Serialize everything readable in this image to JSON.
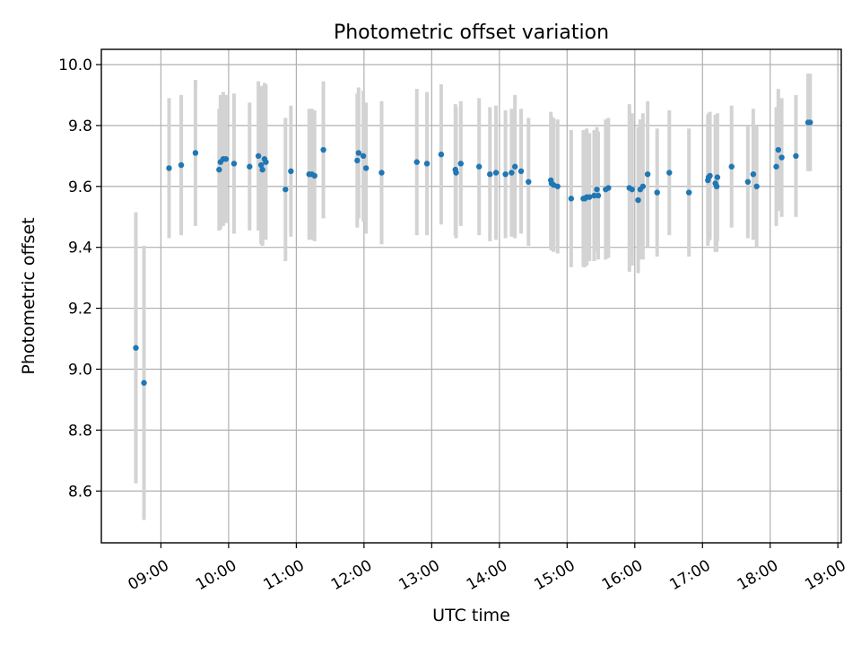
{
  "chart_data": {
    "type": "scatter",
    "title": "Photometric offset variation",
    "xlabel": "UTC time",
    "ylabel": "Photometric offset",
    "x_unit": "hours UTC",
    "xlim": [
      8.12,
      19.05
    ],
    "ylim": [
      8.43,
      10.05
    ],
    "x_ticks": [
      9,
      10,
      11,
      12,
      13,
      14,
      15,
      16,
      17,
      18,
      19
    ],
    "x_tick_labels": [
      "09:00",
      "10:00",
      "11:00",
      "12:00",
      "13:00",
      "14:00",
      "15:00",
      "16:00",
      "17:00",
      "18:00",
      "19:00"
    ],
    "y_ticks": [
      8.6,
      8.8,
      9.0,
      9.2,
      9.4,
      9.6,
      9.8,
      10.0
    ],
    "y_tick_labels": [
      "8.6",
      "8.8",
      "9.0",
      "9.2",
      "9.4",
      "9.6",
      "9.8",
      "10.0"
    ],
    "grid": true,
    "point_color": "#1f77b4",
    "errorbar_color": "#d3d3d3",
    "series": [
      {
        "x": [
          8.63,
          8.75,
          9.12,
          9.3,
          9.51,
          9.86,
          9.88,
          9.92,
          9.96,
          10.08,
          10.31,
          10.44,
          10.48,
          10.5,
          10.53,
          10.55,
          10.84,
          10.92,
          11.19,
          11.23,
          11.27,
          11.4,
          11.9,
          11.92,
          11.99,
          12.03,
          12.26,
          12.78,
          12.93,
          13.14,
          13.35,
          13.36,
          13.43,
          13.7,
          13.86,
          13.95,
          14.09,
          14.18,
          14.23,
          14.32,
          14.43,
          14.76,
          14.77,
          14.8,
          14.86,
          15.06,
          15.24,
          15.26,
          15.29,
          15.33,
          15.4,
          15.44,
          15.46,
          15.57,
          15.61,
          15.92,
          15.96,
          16.05,
          16.08,
          16.12,
          16.19,
          16.33,
          16.51,
          16.8,
          17.08,
          17.09,
          17.11,
          17.19,
          17.21,
          17.22,
          17.43,
          17.67,
          17.75,
          17.8,
          18.09,
          18.12,
          18.17,
          18.38,
          18.56,
          18.59
        ],
        "y": [
          9.07,
          8.955,
          9.66,
          9.67,
          9.71,
          9.655,
          9.68,
          9.69,
          9.69,
          9.675,
          9.665,
          9.7,
          9.67,
          9.655,
          9.69,
          9.68,
          9.59,
          9.65,
          9.64,
          9.64,
          9.635,
          9.72,
          9.685,
          9.71,
          9.7,
          9.66,
          9.645,
          9.68,
          9.675,
          9.705,
          9.655,
          9.645,
          9.675,
          9.665,
          9.64,
          9.645,
          9.64,
          9.645,
          9.665,
          9.65,
          9.615,
          9.62,
          9.61,
          9.605,
          9.6,
          9.56,
          9.56,
          9.56,
          9.565,
          9.565,
          9.57,
          9.59,
          9.57,
          9.59,
          9.595,
          9.595,
          9.59,
          9.555,
          9.59,
          9.6,
          9.64,
          9.58,
          9.645,
          9.58,
          9.62,
          9.63,
          9.635,
          9.61,
          9.6,
          9.63,
          9.665,
          9.615,
          9.64,
          9.6,
          9.665,
          9.72,
          9.695,
          9.7,
          9.81,
          9.81
        ],
        "y_err": [
          0.445,
          0.45,
          0.23,
          0.23,
          0.24,
          0.2,
          0.22,
          0.22,
          0.21,
          0.23,
          0.21,
          0.245,
          0.26,
          0.25,
          0.25,
          0.255,
          0.235,
          0.215,
          0.215,
          0.215,
          0.215,
          0.225,
          0.22,
          0.215,
          0.215,
          0.215,
          0.235,
          0.24,
          0.235,
          0.23,
          0.215,
          0.215,
          0.205,
          0.225,
          0.22,
          0.22,
          0.21,
          0.21,
          0.235,
          0.205,
          0.21,
          0.225,
          0.22,
          0.22,
          0.22,
          0.225,
          0.225,
          0.225,
          0.225,
          0.21,
          0.215,
          0.205,
          0.21,
          0.23,
          0.23,
          0.275,
          0.25,
          0.24,
          0.23,
          0.24,
          0.24,
          0.21,
          0.205,
          0.21,
          0.215,
          0.21,
          0.21,
          0.225,
          0.215,
          0.21,
          0.2,
          0.185,
          0.215,
          0.2,
          0.195,
          0.2,
          0.195,
          0.2,
          0.16,
          0.16
        ]
      }
    ]
  }
}
